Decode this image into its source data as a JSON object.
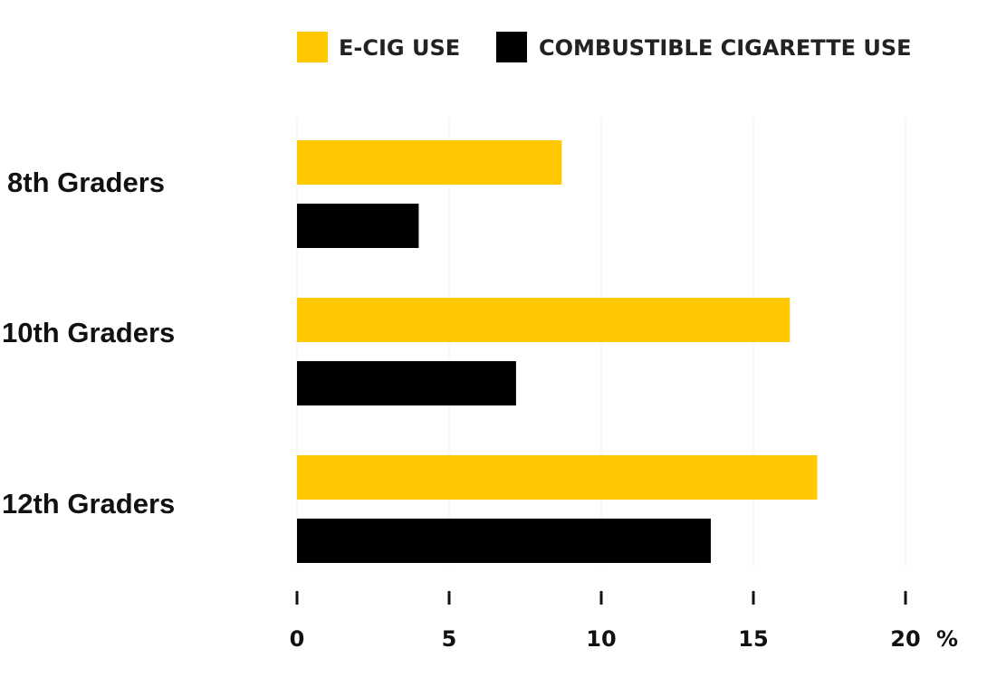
{
  "chart_data": {
    "type": "bar",
    "orientation": "horizontal",
    "categories": [
      "8th Graders",
      "10th Graders",
      "12th Graders"
    ],
    "series": [
      {
        "name": "E-CIG USE",
        "color": "#FFC800",
        "values": [
          8.7,
          16.2,
          17.1
        ]
      },
      {
        "name": "COMBUSTIBLE CIGARETTE USE",
        "color": "#000000",
        "values": [
          4.0,
          7.2,
          13.6
        ]
      }
    ],
    "x_ticks": [
      "0",
      "5",
      "10",
      "15",
      "20"
    ],
    "x_unit": "%",
    "xlim": [
      0,
      20
    ],
    "grid": true,
    "legend_position": "top"
  }
}
